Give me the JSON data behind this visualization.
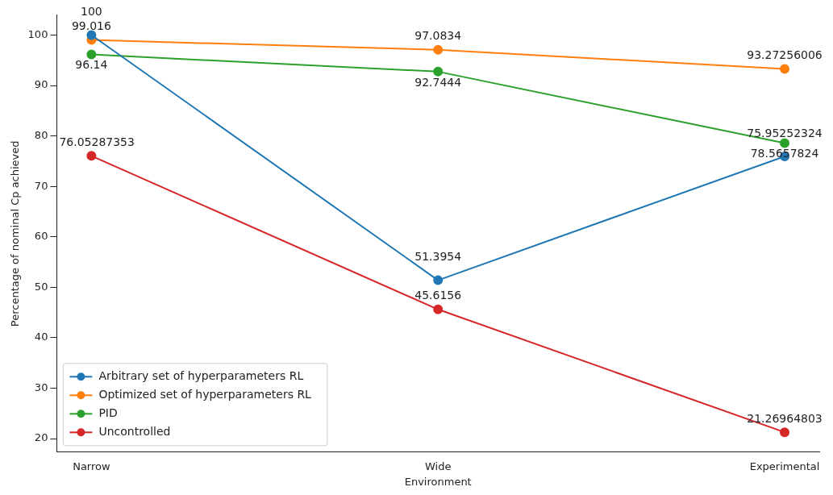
{
  "chart_data": {
    "type": "line",
    "xlabel": "Environment",
    "ylabel": "Percentage of nominal Cp achieved",
    "categories": [
      "Narrow",
      "Wide",
      "Experimental"
    ],
    "series": [
      {
        "name": "Arbitrary set of hyperparameters RL",
        "color": "#1f77b4",
        "values": [
          100,
          51.3954,
          75.95252324
        ]
      },
      {
        "name": "Optimized set of hyperparameters RL",
        "color": "#ff7f0e",
        "values": [
          99.016,
          97.0834,
          93.27256006
        ]
      },
      {
        "name": "PID",
        "color": "#2ca02c",
        "values": [
          96.14,
          92.7444,
          78.5657824
        ]
      },
      {
        "name": "Uncontrolled",
        "color": "#d62728",
        "values": [
          76.05287353,
          45.6156,
          21.26964803
        ]
      }
    ],
    "ylim": [
      17.33,
      103.94
    ],
    "yticks": [
      20,
      30,
      40,
      50,
      60,
      70,
      80,
      90,
      100
    ],
    "data_labels": true,
    "legend": "bottom left",
    "marker": "circle",
    "line_style": "solid",
    "grid": false
  }
}
